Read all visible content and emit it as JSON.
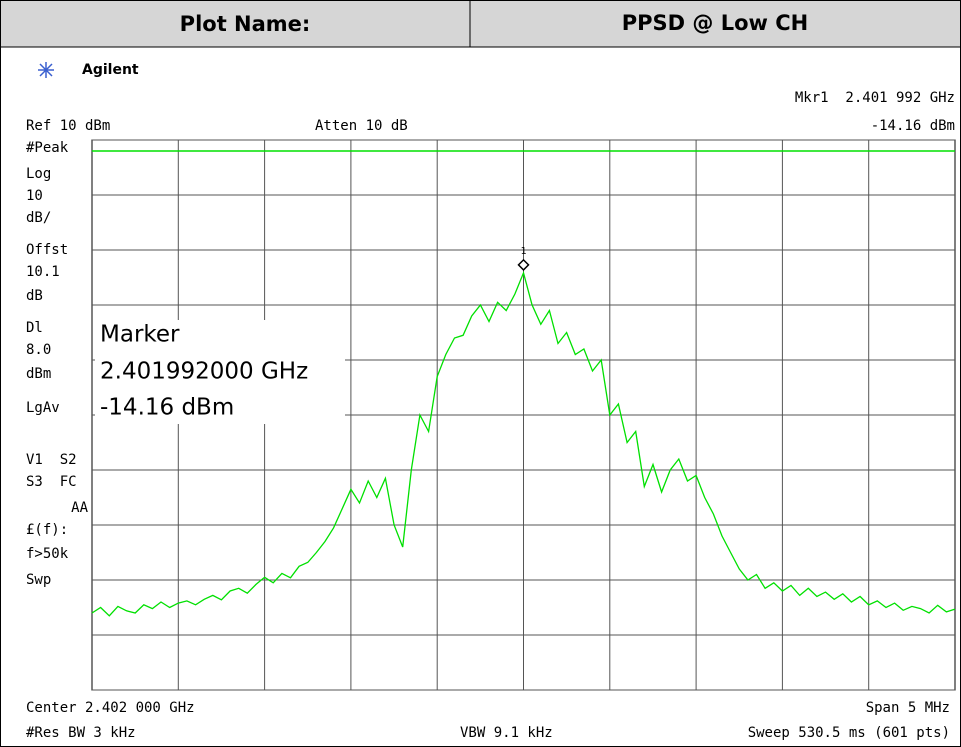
{
  "header": {
    "label": "Plot Name:",
    "value": "PPSD @ Low CH"
  },
  "brand": "Agilent",
  "status": {
    "marker_readout": "Mkr1  2.401 992 GHz",
    "ref": "Ref 10 dBm",
    "atten": "Atten 10 dB",
    "marker_level": "-14.16 dBm"
  },
  "side_labels": [
    "#Peak",
    "Log",
    "10",
    "dB/",
    "Offst",
    "10.1",
    "dB",
    "Dl",
    "8.0",
    "dBm",
    "LgAv",
    "V1  S2",
    "S3  FC",
    "AA",
    "£(f):",
    "f>50k",
    "Swp"
  ],
  "marker_box": {
    "title": "Marker",
    "frequency": "2.401992000 GHz",
    "level": "-14.16 dBm",
    "marker_label": "1"
  },
  "footer": {
    "center": "Center 2.402 000 GHz",
    "span": "Span 5 MHz",
    "rbw": "#Res BW 3 kHz",
    "vbw": "VBW 9.1 kHz",
    "sweep": "Sweep 530.5 ms (601 pts)"
  },
  "chart_data": {
    "type": "line",
    "color": "#00e000",
    "display_line": 8,
    "grid": true,
    "ylim": [
      -90,
      10
    ],
    "yticks": [
      -90,
      -80,
      -70,
      -60,
      -50,
      -40,
      -30,
      -20,
      -10,
      0,
      10
    ],
    "values": [
      -76,
      -75,
      -76.5,
      -74.8,
      -75.6,
      -76,
      -74.5,
      -75.2,
      -74,
      -75,
      -74.2,
      -73.8,
      -74.5,
      -73.5,
      -72.8,
      -73.6,
      -72,
      -71.5,
      -72.4,
      -70.8,
      -69.5,
      -70.5,
      -68.8,
      -69.6,
      -67.5,
      -66.8,
      -65,
      -63,
      -60.5,
      -57,
      -53.5,
      -56,
      -52,
      -55,
      -51.5,
      -60,
      -64,
      -50,
      -40,
      -43,
      -33,
      -29,
      -26,
      -25.5,
      -22,
      -20,
      -23,
      -19.5,
      -21,
      -18,
      -14.16,
      -20,
      -23.5,
      -21,
      -27,
      -25,
      -29,
      -28,
      -32,
      -30,
      -40,
      -38,
      -45,
      -43,
      -53,
      -49,
      -54,
      -50,
      -48,
      -52,
      -51,
      -55,
      -58,
      -62,
      -65,
      -68,
      -70,
      -69,
      -71.5,
      -70.5,
      -72,
      -71,
      -72.8,
      -71.5,
      -73,
      -72.2,
      -73.5,
      -72.5,
      -74,
      -73,
      -74.5,
      -73.8,
      -75,
      -74.2,
      -75.5,
      -74.8,
      -75.2,
      -76,
      -74.6,
      -75.8,
      -75.3
    ]
  }
}
